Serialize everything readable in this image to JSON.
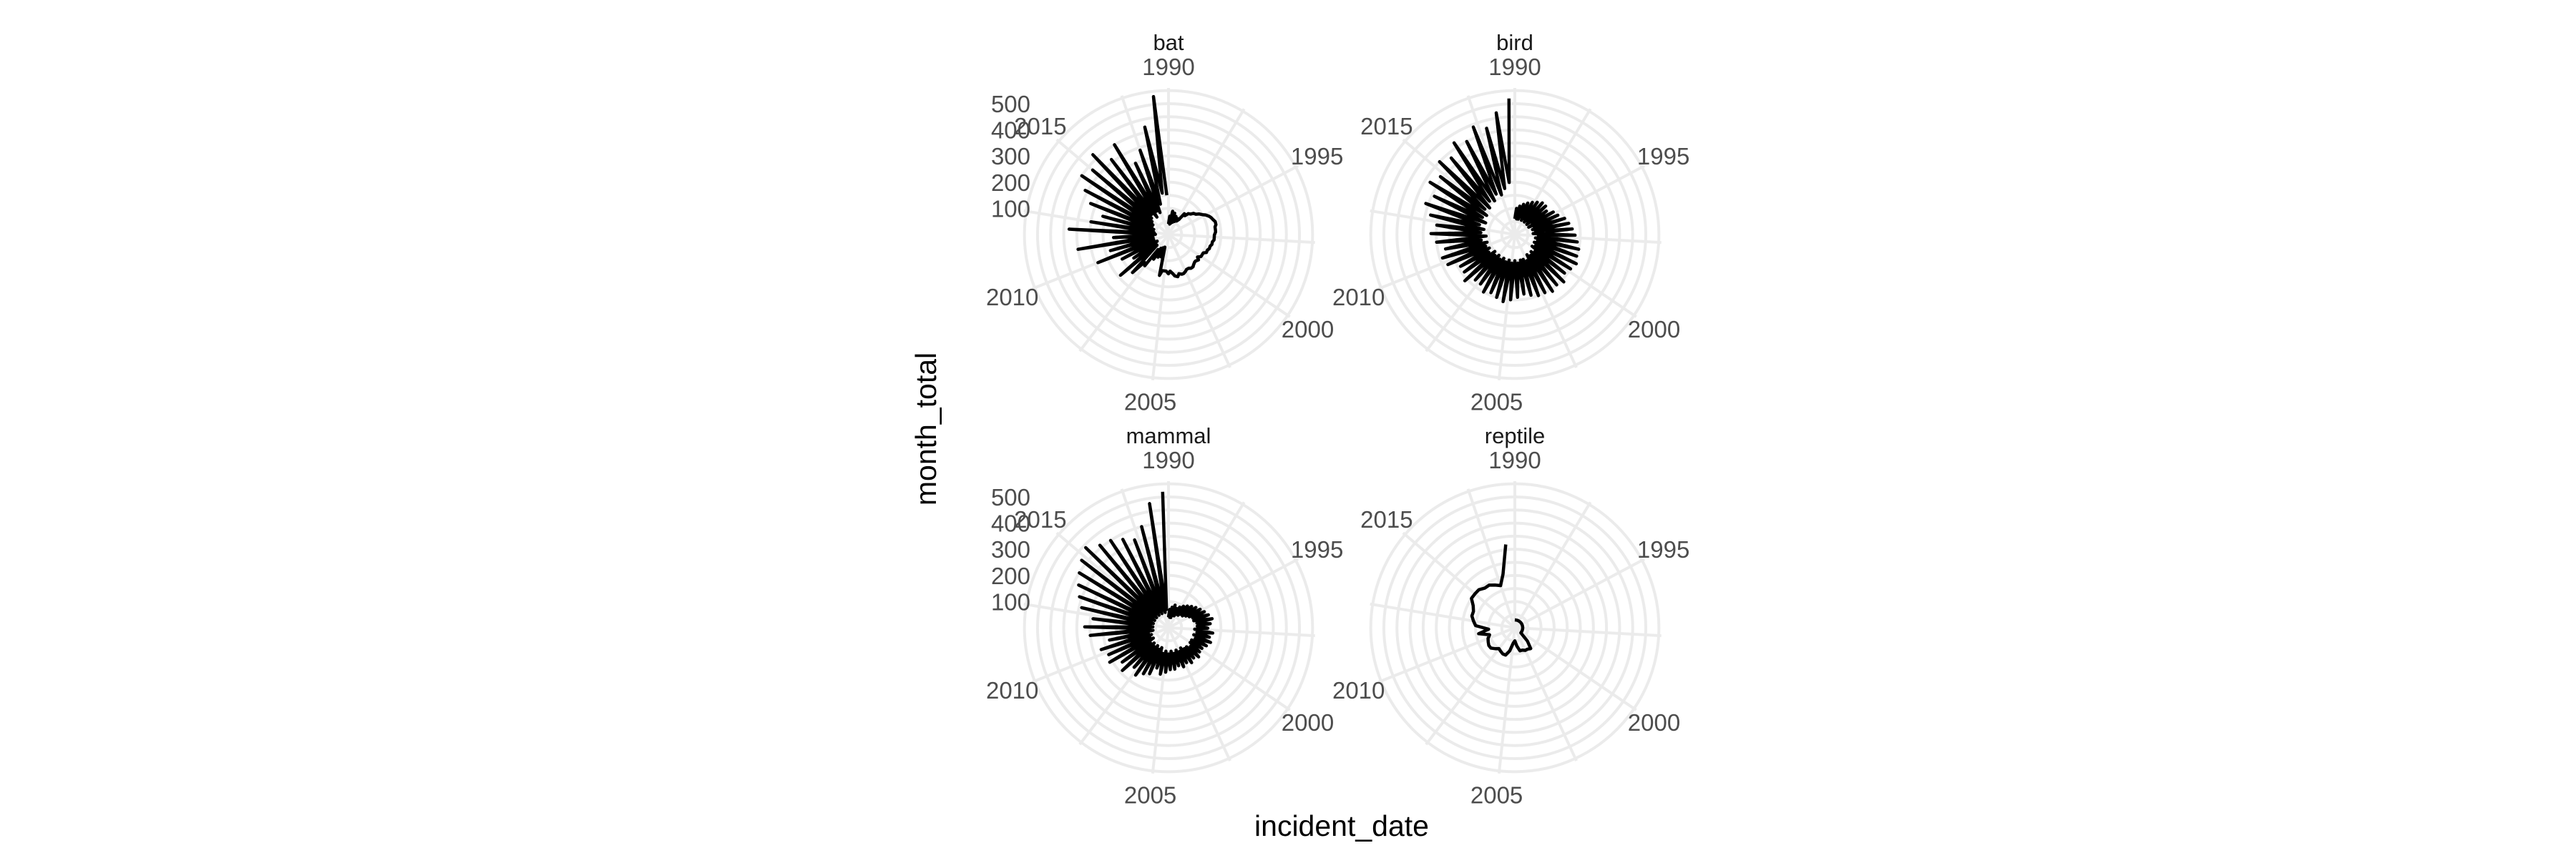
{
  "chart_data": {
    "type": "line",
    "coord": "polar",
    "facet_by": "animal class",
    "xlabel": "incident_date",
    "ylabel": "month_total",
    "x_tick_labels": [
      "1990",
      "1995",
      "2000",
      "2005",
      "2010",
      "2015"
    ],
    "x_ticks": [
      1990,
      1995,
      2000,
      2005,
      2010,
      2015
    ],
    "xlim": [
      1990,
      2019
    ],
    "y_tick_labels": [
      "100",
      "200",
      "300",
      "400",
      "500"
    ],
    "y_ticks": [
      100,
      200,
      300,
      400,
      500
    ],
    "ylim": [
      0,
      560
    ],
    "grid": true,
    "line_color": "#000000",
    "grid_color": "#ebebeb",
    "panels": [
      {
        "label": "bat",
        "x": [
          1990.0,
          1990.3,
          1990.5,
          1990.8,
          1991.0,
          1991.3,
          1991.5,
          1991.8,
          1992.0,
          1992.3,
          1992.5,
          1992.8,
          1993.0,
          1993.3,
          1993.5,
          1993.8,
          1994.0,
          1994.3,
          1994.5,
          1994.8,
          1995.0,
          1995.3,
          1995.5,
          1995.8,
          1996.0,
          1996.3,
          1996.5,
          1996.8,
          1997.0,
          1997.3,
          1997.5,
          1997.8,
          1998.0,
          1998.3,
          1998.5,
          1998.8,
          1999.0,
          1999.3,
          1999.5,
          1999.8,
          2000.0,
          2000.3,
          2000.5,
          2000.8,
          2001.0,
          2001.3,
          2001.5,
          2001.8,
          2002.0,
          2002.3,
          2002.5,
          2002.8,
          2003.0,
          2003.3,
          2003.5,
          2003.8,
          2004.0,
          2004.3,
          2004.5,
          2004.8,
          2005.0,
          2005.3,
          2005.5,
          2005.8,
          2006.0,
          2006.3,
          2006.5,
          2006.8,
          2007.0,
          2007.3,
          2007.5,
          2007.8,
          2008.0,
          2008.3,
          2008.5,
          2008.8,
          2009.0,
          2009.3,
          2009.5,
          2009.8,
          2010.0,
          2010.3,
          2010.5,
          2010.8,
          2011.0,
          2011.3,
          2011.5,
          2011.8,
          2012.0,
          2012.3,
          2012.5,
          2012.8,
          2013.0,
          2013.3,
          2013.5,
          2013.8,
          2014.0,
          2014.3,
          2014.5,
          2014.8,
          2015.0,
          2015.3,
          2015.5,
          2015.8,
          2016.0,
          2016.3,
          2016.5,
          2016.8,
          2017.0,
          2017.3,
          2017.5,
          2017.8,
          2018.0,
          2018.3,
          2018.5,
          2018.8
        ],
        "values": [
          40,
          70,
          40,
          90,
          45,
          85,
          50,
          75,
          55,
          70,
          60,
          70,
          100,
          95,
          110,
          115,
          125,
          130,
          140,
          150,
          160,
          170,
          175,
          180,
          185,
          185,
          180,
          180,
          180,
          175,
          175,
          175,
          170,
          170,
          165,
          165,
          160,
          160,
          150,
          150,
          150,
          140,
          150,
          145,
          145,
          150,
          155,
          155,
          150,
          150,
          155,
          160,
          160,
          155,
          165,
          160,
          150,
          140,
          150,
          140,
          140,
          140,
          160,
          50,
          90,
          55,
          95,
          60,
          110,
          70,
          150,
          140,
          200,
          60,
          240,
          60,
          160,
          50,
          200,
          60,
          290,
          60,
          230,
          60,
          350,
          60,
          210,
          50,
          380,
          55,
          300,
          60,
          260,
          60,
          320,
          70,
          360,
          70,
          400,
          80,
          380,
          90,
          420,
          100,
          360,
          80,
          400,
          100,
          300,
          90,
          340,
          120,
          420,
          160,
          530,
          150
        ]
      },
      {
        "label": "bird",
        "x": [
          1990.0,
          1990.3,
          1990.5,
          1990.8,
          1991.0,
          1991.3,
          1991.5,
          1991.8,
          1992.0,
          1992.3,
          1992.5,
          1992.8,
          1993.0,
          1993.3,
          1993.5,
          1993.8,
          1994.0,
          1994.3,
          1994.5,
          1994.8,
          1995.0,
          1995.3,
          1995.5,
          1995.8,
          1996.0,
          1996.3,
          1996.5,
          1996.8,
          1997.0,
          1997.3,
          1997.5,
          1997.8,
          1998.0,
          1998.3,
          1998.5,
          1998.8,
          1999.0,
          1999.3,
          1999.5,
          1999.8,
          2000.0,
          2000.3,
          2000.5,
          2000.8,
          2001.0,
          2001.3,
          2001.5,
          2001.8,
          2002.0,
          2002.3,
          2002.5,
          2002.8,
          2003.0,
          2003.3,
          2003.5,
          2003.8,
          2004.0,
          2004.3,
          2004.5,
          2004.8,
          2005.0,
          2005.3,
          2005.5,
          2005.8,
          2006.0,
          2006.3,
          2006.5,
          2006.8,
          2007.0,
          2007.3,
          2007.5,
          2007.8,
          2008.0,
          2008.3,
          2008.5,
          2008.8,
          2009.0,
          2009.3,
          2009.5,
          2009.8,
          2010.0,
          2010.3,
          2010.5,
          2010.8,
          2011.0,
          2011.3,
          2011.5,
          2011.8,
          2012.0,
          2012.3,
          2012.5,
          2012.8,
          2013.0,
          2013.3,
          2013.5,
          2013.8,
          2014.0,
          2014.3,
          2014.5,
          2014.8,
          2015.0,
          2015.3,
          2015.5,
          2015.8,
          2016.0,
          2016.3,
          2016.5,
          2016.8,
          2017.0,
          2017.3,
          2017.5,
          2017.8,
          2018.0,
          2018.3,
          2018.5,
          2018.8
        ],
        "values": [
          60,
          100,
          60,
          110,
          60,
          120,
          70,
          130,
          60,
          140,
          70,
          150,
          60,
          160,
          70,
          160,
          60,
          150,
          80,
          170,
          60,
          180,
          80,
          200,
          70,
          210,
          80,
          220,
          70,
          230,
          90,
          240,
          80,
          250,
          90,
          250,
          80,
          260,
          90,
          250,
          80,
          240,
          100,
          260,
          90,
          250,
          100,
          260,
          90,
          250,
          110,
          250,
          100,
          240,
          100,
          230,
          110,
          240,
          100,
          250,
          110,
          260,
          100,
          250,
          110,
          240,
          100,
          250,
          110,
          230,
          100,
          230,
          110,
          260,
          100,
          240,
          120,
          240,
          110,
          280,
          120,
          290,
          110,
          270,
          130,
          300,
          110,
          320,
          130,
          300,
          120,
          330,
          140,
          360,
          120,
          340,
          140,
          380,
          130,
          360,
          150,
          400,
          140,
          380,
          160,
          420,
          150,
          400,
          170,
          440,
          160,
          420,
          180,
          470,
          200,
          520
        ]
      },
      {
        "label": "mammal",
        "x": [
          1990.0,
          1990.3,
          1990.5,
          1990.8,
          1991.0,
          1991.3,
          1991.5,
          1991.8,
          1992.0,
          1992.3,
          1992.5,
          1992.8,
          1993.0,
          1993.3,
          1993.5,
          1993.8,
          1994.0,
          1994.3,
          1994.5,
          1994.8,
          1995.0,
          1995.3,
          1995.5,
          1995.8,
          1996.0,
          1996.3,
          1996.5,
          1996.8,
          1997.0,
          1997.3,
          1997.5,
          1997.8,
          1998.0,
          1998.3,
          1998.5,
          1998.8,
          1999.0,
          1999.3,
          1999.5,
          1999.8,
          2000.0,
          2000.3,
          2000.5,
          2000.8,
          2001.0,
          2001.3,
          2001.5,
          2001.8,
          2002.0,
          2002.3,
          2002.5,
          2002.8,
          2003.0,
          2003.3,
          2003.5,
          2003.8,
          2004.0,
          2004.3,
          2004.5,
          2004.8,
          2005.0,
          2005.3,
          2005.5,
          2005.8,
          2006.0,
          2006.3,
          2006.5,
          2006.8,
          2007.0,
          2007.3,
          2007.5,
          2007.8,
          2008.0,
          2008.3,
          2008.5,
          2008.8,
          2009.0,
          2009.3,
          2009.5,
          2009.8,
          2010.0,
          2010.3,
          2010.5,
          2010.8,
          2011.0,
          2011.3,
          2011.5,
          2011.8,
          2012.0,
          2012.3,
          2012.5,
          2012.8,
          2013.0,
          2013.3,
          2013.5,
          2013.8,
          2014.0,
          2014.3,
          2014.5,
          2014.8,
          2015.0,
          2015.3,
          2015.5,
          2015.8,
          2016.0,
          2016.3,
          2016.5,
          2016.8,
          2017.0,
          2017.3,
          2017.5,
          2017.8,
          2018.0,
          2018.3,
          2018.5,
          2018.8
        ],
        "values": [
          40,
          70,
          40,
          80,
          40,
          90,
          50,
          80,
          50,
          90,
          60,
          100,
          60,
          110,
          70,
          120,
          70,
          130,
          80,
          140,
          90,
          150,
          100,
          160,
          100,
          170,
          110,
          160,
          110,
          150,
          100,
          170,
          110,
          160,
          100,
          170,
          110,
          160,
          100,
          150,
          100,
          150,
          110,
          160,
          100,
          150,
          100,
          160,
          90,
          150,
          100,
          160,
          90,
          150,
          100,
          160,
          90,
          160,
          100,
          170,
          90,
          180,
          100,
          160,
          80,
          190,
          90,
          200,
          80,
          220,
          90,
          200,
          80,
          240,
          90,
          220,
          70,
          260,
          80,
          250,
          70,
          270,
          80,
          230,
          60,
          300,
          70,
          320,
          60,
          290,
          70,
          340,
          60,
          360,
          70,
          380,
          60,
          400,
          70,
          420,
          60,
          440,
          70,
          410,
          60,
          400,
          70,
          380,
          60,
          360,
          70,
          400,
          60,
          480,
          70,
          520
        ]
      },
      {
        "label": "reptile",
        "x": [
          1990.0,
          1990.5,
          1991.0,
          1991.5,
          1992.0,
          1992.5,
          1993.0,
          1993.5,
          1994.0,
          1994.5,
          1995.0,
          1995.5,
          1996.0,
          1996.5,
          1997.0,
          1997.5,
          1998.0,
          1998.5,
          1999.0,
          1999.5,
          2000.0,
          2000.5,
          2001.0,
          2001.5,
          2002.0,
          2002.5,
          2003.0,
          2003.5,
          2004.0,
          2004.5,
          2005.0,
          2005.5,
          2006.0,
          2006.5,
          2007.0,
          2007.5,
          2008.0,
          2008.5,
          2009.0,
          2009.5,
          2010.0,
          2010.5,
          2011.0,
          2011.5,
          2012.0,
          2012.5,
          2013.0,
          2013.5,
          2014.0,
          2014.5,
          2015.0,
          2015.5,
          2016.0,
          2016.5,
          2017.0,
          2017.5,
          2018.0,
          2018.5
        ],
        "values": [
          30,
          30,
          30,
          30,
          30,
          30,
          30,
          30,
          30,
          30,
          30,
          30,
          30,
          30,
          30,
          30,
          30,
          30,
          30,
          30,
          30,
          30,
          70,
          100,
          95,
          95,
          90,
          90,
          70,
          50,
          60,
          90,
          110,
          110,
          105,
          100,
          110,
          120,
          120,
          115,
          110,
          100,
          140,
          100,
          150,
          160,
          170,
          170,
          180,
          200,
          200,
          200,
          190,
          190,
          180,
          170,
          210,
          320
        ]
      }
    ]
  }
}
